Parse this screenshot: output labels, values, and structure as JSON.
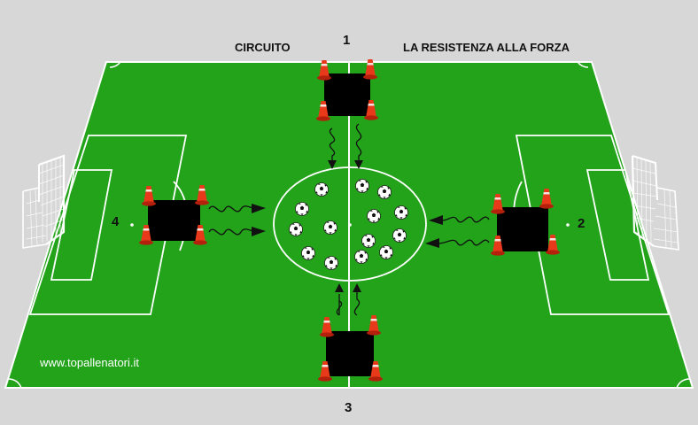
{
  "diagram": {
    "title_left": "CIRCUITO",
    "title_right": "LA RESISTENZA  ALLA FORZA",
    "station_1": "1",
    "station_2": "2",
    "station_3": "3",
    "station_4": "4",
    "credit": "www.topallenatori.it"
  },
  "colors": {
    "background": "#d7d7d7",
    "pitch": "#22a31a",
    "lines": "#ffffff",
    "station_box": "#000000",
    "cone": "#e83a1a"
  },
  "icons": [
    "goal-icon",
    "cone-icon",
    "ball-icon",
    "arrow-icon"
  ]
}
